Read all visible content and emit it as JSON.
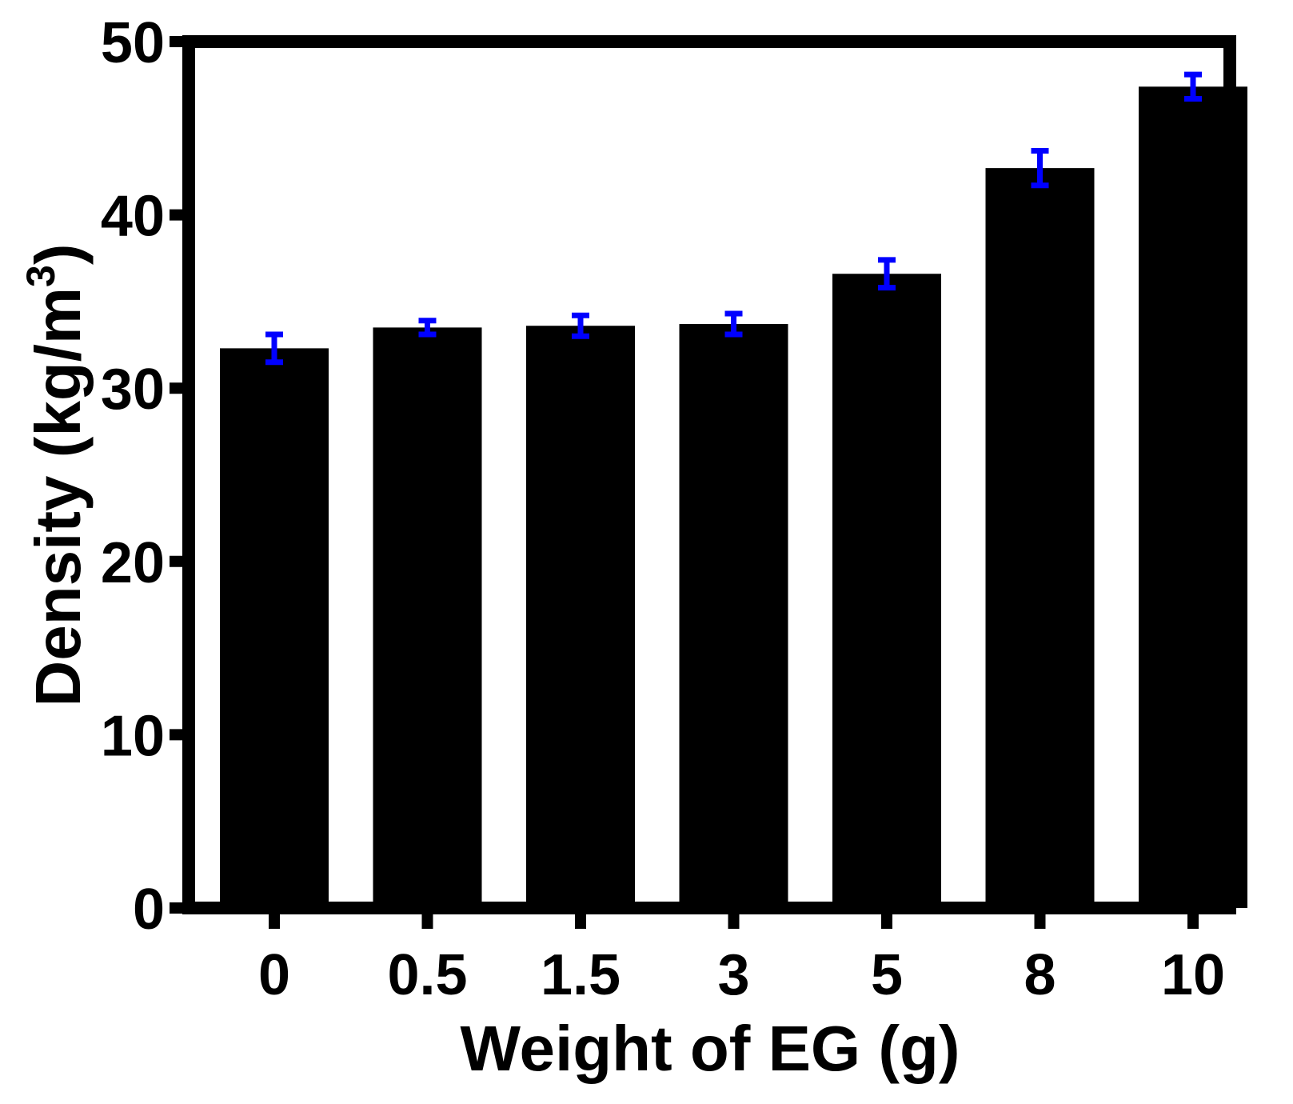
{
  "chart_data": {
    "type": "bar",
    "title": "",
    "xlabel": "Weight of EG (g)",
    "ylabel": {
      "main": "Density (kg/m",
      "superscript": "3",
      "close": ")"
    },
    "categories": [
      "0",
      "0.5",
      "1.5",
      "3",
      "5",
      "8",
      "10"
    ],
    "values": [
      32.3,
      33.5,
      33.6,
      33.7,
      36.6,
      42.7,
      47.4
    ],
    "errors": [
      0.8,
      0.4,
      0.6,
      0.6,
      0.8,
      1.0,
      0.7
    ],
    "ylim": [
      0,
      50
    ],
    "yticks": [
      0,
      10,
      20,
      30,
      40,
      50
    ],
    "ytick_labels": [
      "0",
      "10",
      "20",
      "30",
      "40",
      "50"
    ],
    "grid": false,
    "colors": {
      "bar": "#000000",
      "error_bar": "#0000ff",
      "axis": "#000000"
    }
  }
}
